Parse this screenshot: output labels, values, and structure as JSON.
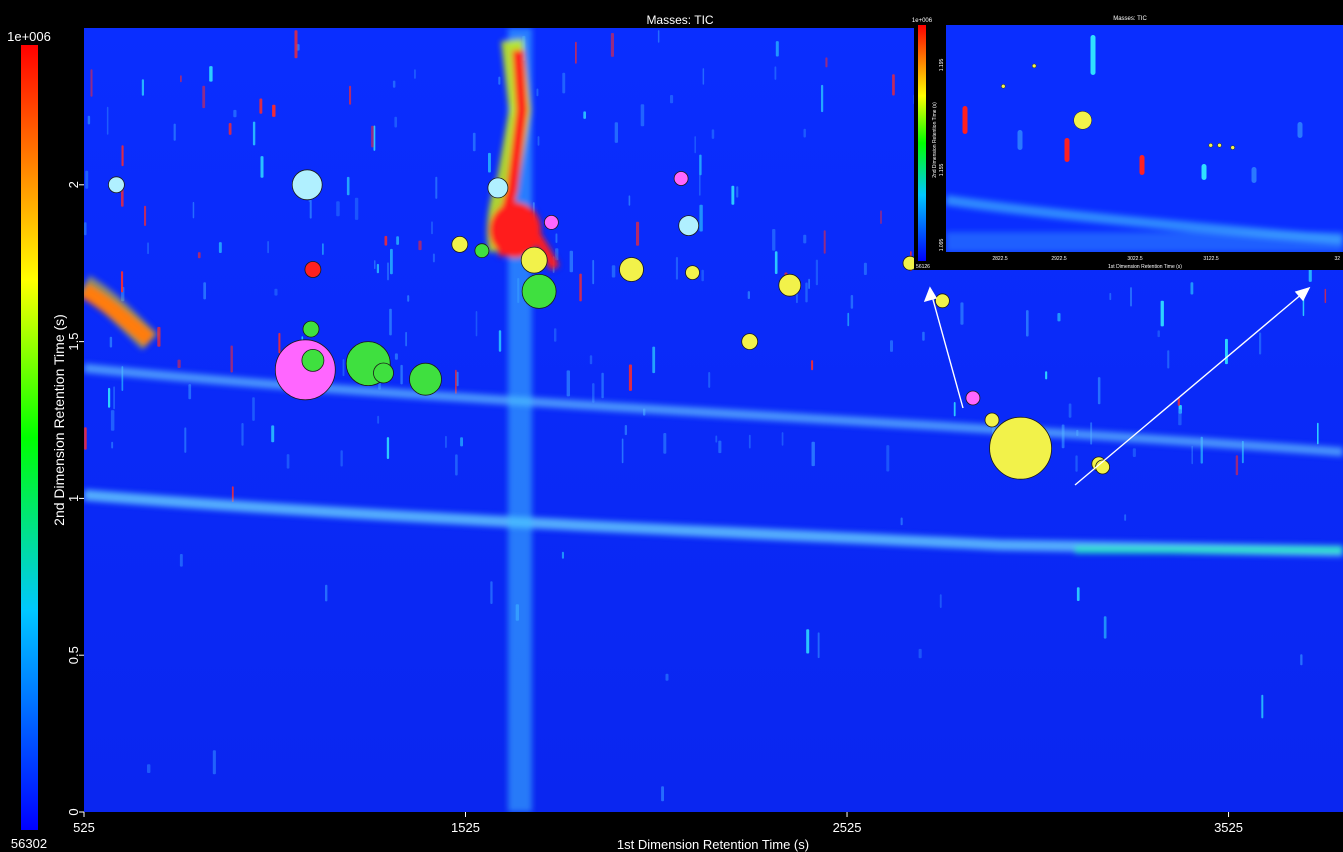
{
  "chart_data": {
    "type": "scatter",
    "title": "Masses: TIC",
    "xlabel": "1st Dimension Retention Time (s)",
    "ylabel": "2nd Dimension Retention Time (s)",
    "xlim": [
      525,
      3825
    ],
    "ylim": [
      0,
      2.5
    ],
    "x_ticks": [
      525,
      1525,
      2525,
      3525
    ],
    "y_ticks": [
      0,
      0.5,
      1,
      1.5,
      2
    ],
    "colorbar": {
      "max_label": "1e+006",
      "min_label": "56302",
      "colors": [
        "#0000ff",
        "#00c8ff",
        "#00ff00",
        "#ffff00",
        "#ff0000"
      ]
    },
    "background_color": "#0a2cff",
    "bubble_colors": {
      "light-blue": "#b0f0ff",
      "green": "#3fe03f",
      "yellow": "#f2f24a",
      "magenta": "#ff66ff",
      "red": "#ff2020"
    },
    "bubbles": [
      {
        "x": 610,
        "y": 2.0,
        "size": 8,
        "color": "light-blue"
      },
      {
        "x": 1110,
        "y": 2.0,
        "size": 15,
        "color": "light-blue"
      },
      {
        "x": 1610,
        "y": 1.99,
        "size": 10,
        "color": "light-blue"
      },
      {
        "x": 2110,
        "y": 1.87,
        "size": 10,
        "color": "light-blue"
      },
      {
        "x": 1105,
        "y": 1.41,
        "size": 30,
        "color": "magenta"
      },
      {
        "x": 1750,
        "y": 1.88,
        "size": 7,
        "color": "magenta"
      },
      {
        "x": 2090,
        "y": 2.02,
        "size": 7,
        "color": "magenta"
      },
      {
        "x": 2855,
        "y": 1.32,
        "size": 7,
        "color": "magenta"
      },
      {
        "x": 1120,
        "y": 1.54,
        "size": 8,
        "color": "green"
      },
      {
        "x": 1125,
        "y": 1.44,
        "size": 11,
        "color": "green"
      },
      {
        "x": 1270,
        "y": 1.43,
        "size": 22,
        "color": "green"
      },
      {
        "x": 1310,
        "y": 1.4,
        "size": 10,
        "color": "green"
      },
      {
        "x": 1420,
        "y": 1.38,
        "size": 16,
        "color": "green"
      },
      {
        "x": 1568,
        "y": 1.79,
        "size": 7,
        "color": "green"
      },
      {
        "x": 1718,
        "y": 1.66,
        "size": 17,
        "color": "green"
      },
      {
        "x": 1510,
        "y": 1.81,
        "size": 8,
        "color": "yellow"
      },
      {
        "x": 1705,
        "y": 1.76,
        "size": 13,
        "color": "yellow"
      },
      {
        "x": 1960,
        "y": 1.73,
        "size": 12,
        "color": "yellow"
      },
      {
        "x": 2120,
        "y": 1.72,
        "size": 7,
        "color": "yellow"
      },
      {
        "x": 2270,
        "y": 1.5,
        "size": 8,
        "color": "yellow"
      },
      {
        "x": 2375,
        "y": 1.68,
        "size": 11,
        "color": "yellow"
      },
      {
        "x": 2690,
        "y": 1.75,
        "size": 7,
        "color": "yellow"
      },
      {
        "x": 2775,
        "y": 1.63,
        "size": 7,
        "color": "yellow"
      },
      {
        "x": 2905,
        "y": 1.25,
        "size": 7,
        "color": "yellow"
      },
      {
        "x": 2980,
        "y": 1.16,
        "size": 31,
        "color": "yellow"
      },
      {
        "x": 3185,
        "y": 1.11,
        "size": 7,
        "color": "yellow"
      },
      {
        "x": 3195,
        "y": 1.1,
        "size": 7,
        "color": "yellow"
      },
      {
        "x": 1125,
        "y": 1.73,
        "size": 8,
        "color": "red"
      }
    ],
    "inset": {
      "title": "Masses: TIC",
      "xlabel": "1st Dimension Retention Time (s)",
      "ylabel": "2nd Dimension Retention Time (s)",
      "colorbar": {
        "max_label": "1e+006",
        "min_label": "56126"
      },
      "x_ticks": [
        "2822.5",
        "2922.5",
        "3022.5",
        "3122.5",
        "3222.5"
      ],
      "y_ticks": [
        "1.195",
        "1.155",
        "1.095"
      ],
      "x_first": "2822.5",
      "x_last": "32",
      "bubbles": [
        {
          "x": 2900,
          "y": 0.82,
          "size": 2,
          "color": "yellow"
        },
        {
          "x": 2865,
          "y": 0.73,
          "size": 2,
          "color": "yellow"
        },
        {
          "x": 2955,
          "y": 0.58,
          "size": 9,
          "color": "yellow"
        },
        {
          "x": 3100,
          "y": 0.47,
          "size": 2,
          "color": "yellow"
        },
        {
          "x": 3110,
          "y": 0.47,
          "size": 2,
          "color": "yellow"
        },
        {
          "x": 3125,
          "y": 0.46,
          "size": 2,
          "color": "yellow"
        }
      ],
      "xlim": [
        2800,
        3250
      ],
      "ylim": [
        0,
        1
      ]
    }
  }
}
